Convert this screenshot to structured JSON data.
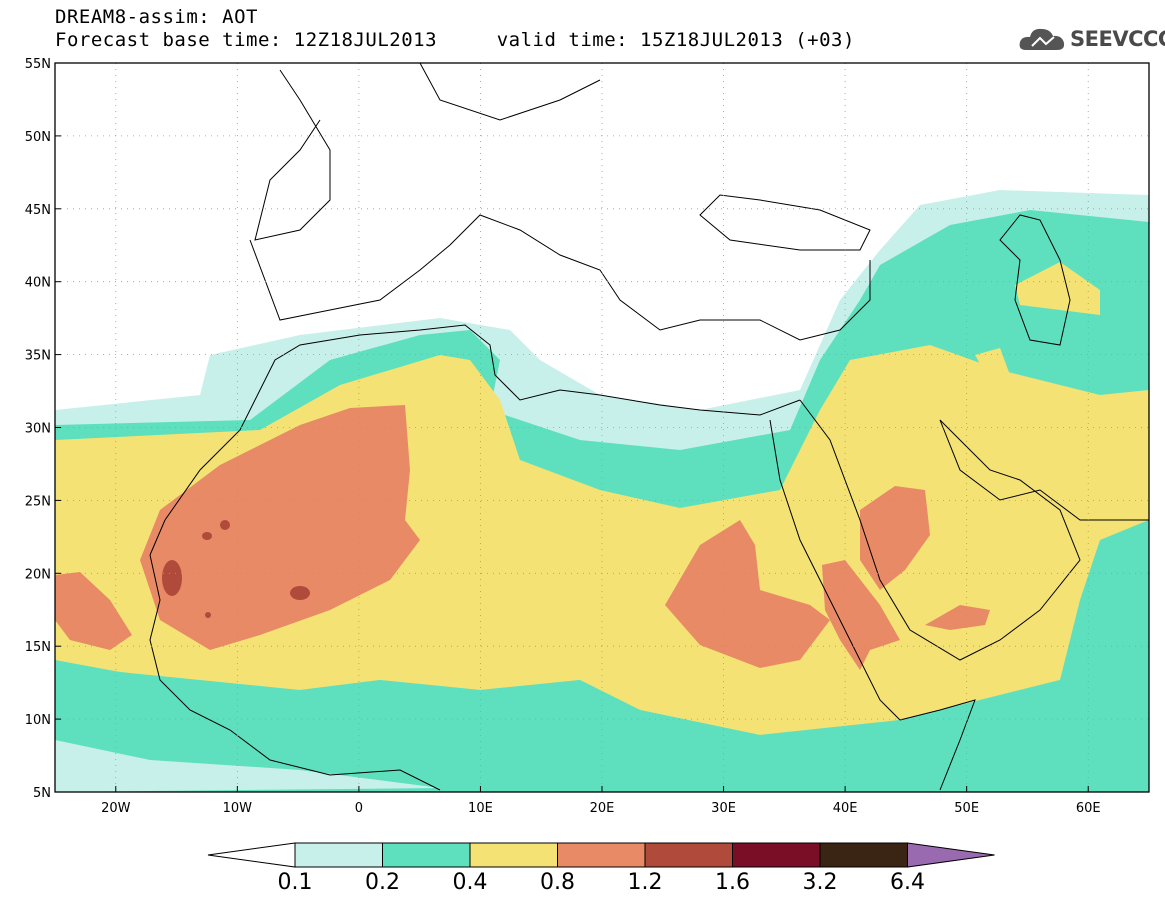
{
  "header": {
    "title_line1": "DREAM8-assim: AOT",
    "title_line2": "Forecast base time: 12Z18JUL2013     valid time: 15Z18JUL2013 (+03)",
    "logo_text": "SEEVCCC",
    "logo_icon": "cloud-icon"
  },
  "map": {
    "lon_range": [
      -25,
      65
    ],
    "lat_range": [
      5,
      55
    ],
    "lon_tick_labels": [
      "20W",
      "10W",
      "0",
      "10E",
      "20E",
      "30E",
      "40E",
      "50E",
      "60E"
    ],
    "lon_tick_values": [
      -20,
      -10,
      0,
      10,
      20,
      30,
      40,
      50,
      60
    ],
    "lat_tick_labels": [
      "5N",
      "10N",
      "15N",
      "20N",
      "25N",
      "30N",
      "35N",
      "40N",
      "45N",
      "50N",
      "55N"
    ],
    "lat_tick_values": [
      5,
      10,
      15,
      20,
      25,
      30,
      35,
      40,
      45,
      50,
      55
    ]
  },
  "colorbar": {
    "labels": [
      "0.1",
      "0.2",
      "0.4",
      "0.8",
      "1.2",
      "1.6",
      "3.2",
      "6.4"
    ],
    "colors": [
      "#ffffff",
      "#c8f0ea",
      "#5ee0be",
      "#f4e274",
      "#e88a66",
      "#b04a3a",
      "#7a0e26",
      "#3a2414",
      "#9a6ab0"
    ]
  }
}
